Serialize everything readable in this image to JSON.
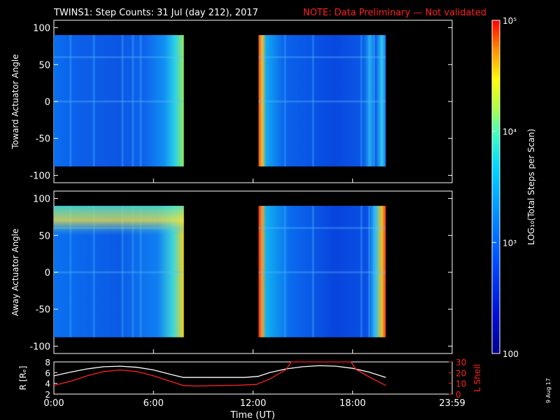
{
  "title": {
    "main": "TWINS1: Step Counts: 31 Jul (day 212), 2017",
    "note": "NOTE: Data Preliminary — Not validated"
  },
  "date_stamp": "9 Aug 17",
  "colors": {
    "background": "#000000",
    "text": "#ffffff",
    "note": "#ff2020",
    "altitude_line": "#ffffff",
    "lshell_line": "#ff2020"
  },
  "chart_data": [
    {
      "type": "heatmap",
      "title": "",
      "xlabel": "",
      "ylabel": "Toward Actuator Angle",
      "xlim": [
        0,
        24
      ],
      "ylim": [
        -110,
        110
      ],
      "yticks": [
        100,
        50,
        0,
        -50,
        -100
      ],
      "ytick_labels": [
        "100",
        "50",
        "0",
        "-50",
        "-100"
      ],
      "angle_range": [
        -88,
        90
      ],
      "data_blocks": [
        {
          "start": "00:00",
          "end": "07:50",
          "start_h": 0.0,
          "end_h": 7.83
        },
        {
          "start": "12:20",
          "end": "20:00",
          "start_h": 12.33,
          "end_h": 20.0
        }
      ]
    },
    {
      "type": "heatmap",
      "title": "",
      "xlabel": "",
      "ylabel": "Away Actuator Angle",
      "xlim": [
        0,
        24
      ],
      "ylim": [
        -110,
        110
      ],
      "yticks": [
        100,
        50,
        0,
        -50,
        -100
      ],
      "ytick_labels": [
        "100",
        "50",
        "0",
        "-50",
        "-100"
      ],
      "angle_range": [
        -88,
        90
      ],
      "data_blocks": [
        {
          "start": "00:00",
          "end": "07:50",
          "start_h": 0.0,
          "end_h": 7.83
        },
        {
          "start": "12:20",
          "end": "20:00",
          "start_h": 12.33,
          "end_h": 20.0
        }
      ]
    },
    {
      "type": "line",
      "title": "",
      "xlabel": "Time (UT)",
      "xlim": [
        0,
        24
      ],
      "xticks": [
        0,
        6,
        12,
        18,
        24
      ],
      "xtick_labels": [
        "0:00",
        "6:00",
        "12:00",
        "18:00",
        "23:59"
      ],
      "ylabel": "R [Rₑ]",
      "ylim": [
        2,
        8
      ],
      "yticks": [
        2,
        4,
        6,
        8
      ],
      "ytick_labels": [
        "2",
        "4",
        "6",
        "8"
      ],
      "y2label": "L Shell",
      "y2lim": [
        0,
        30
      ],
      "y2ticks": [
        0,
        10,
        20,
        30
      ],
      "y2tick_labels": [
        "0",
        "10",
        "20",
        "30"
      ],
      "series": [
        {
          "axis": "left",
          "x": [
            0,
            1,
            2,
            3,
            4,
            5,
            6,
            7,
            7.8,
            8.5,
            9.5,
            10.5,
            11.5,
            12.3,
            13,
            14,
            15,
            16,
            17,
            18,
            19,
            20
          ],
          "y": [
            5.4,
            6.1,
            6.7,
            7.1,
            7.2,
            7.0,
            6.5,
            5.7,
            5.1,
            5.1,
            5.1,
            5.1,
            5.1,
            5.3,
            6.0,
            6.7,
            7.1,
            7.3,
            7.2,
            6.8,
            6.1,
            5.1
          ]
        },
        {
          "axis": "right",
          "x": [
            0,
            1,
            2,
            3,
            4,
            5,
            6,
            7,
            7.8,
            8.5,
            10,
            11,
            12.2,
            13,
            14,
            14.3,
            17.9,
            18.2,
            19,
            20
          ],
          "y": [
            8,
            12,
            17,
            21,
            22.5,
            21,
            17,
            12,
            8,
            7.5,
            8,
            8.2,
            9,
            14,
            23,
            30,
            30,
            23,
            16,
            8
          ]
        }
      ]
    }
  ],
  "colorbar": {
    "scale": "log",
    "range": [
      100,
      100000
    ],
    "label": "LOG₁₀(Total Steps per Scan)",
    "ticks": [
      {
        "value": 100000,
        "label": "10⁵"
      },
      {
        "value": 10000,
        "label": "10⁴"
      },
      {
        "value": 1000,
        "label": "10³"
      },
      {
        "value": 100,
        "label": "100"
      }
    ]
  }
}
